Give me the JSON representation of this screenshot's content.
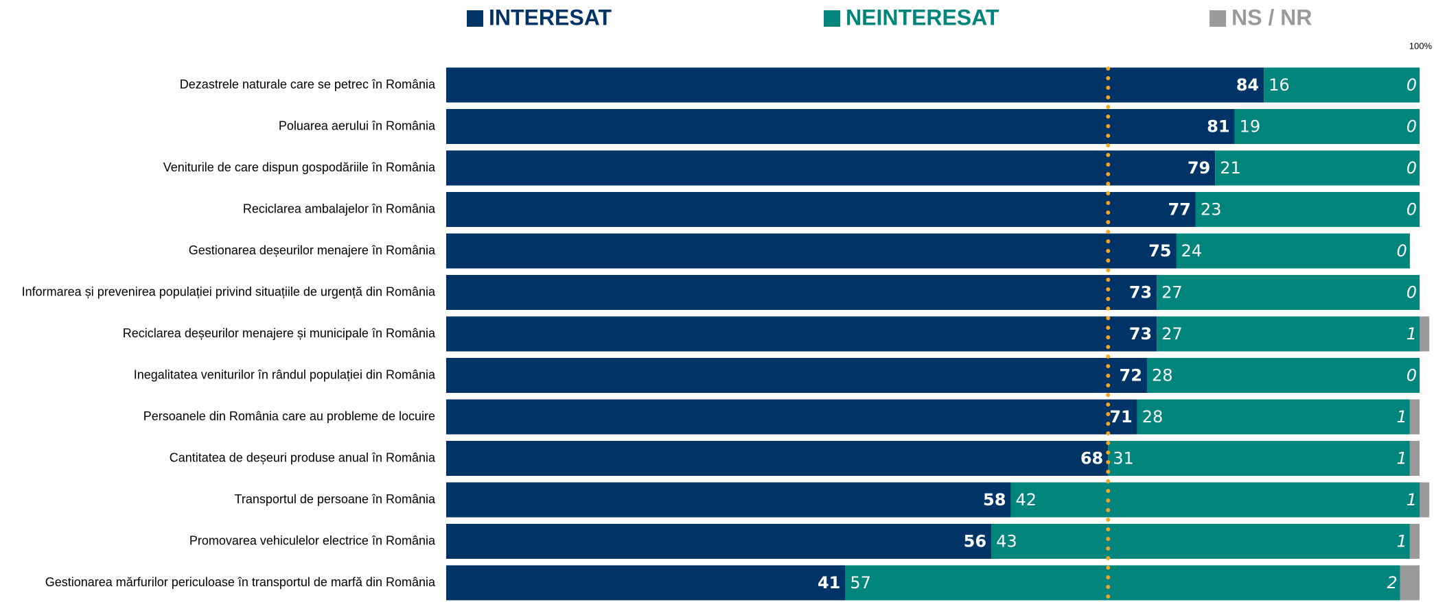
{
  "chart_data": {
    "type": "stacked-bar-horizontal",
    "categories": [
      "Dezastrele naturale care se petrec în România",
      "Poluarea aerului în România",
      "Veniturile de care dispun gospodăriile în România",
      "Reciclarea ambalajelor în România",
      "Gestionarea deșeurilor menajere în România",
      "Informarea și prevenirea populației privind situațiile de urgență din România",
      "Reciclarea deșeurilor menajere și municipale în România",
      "Inegalitatea veniturilor în rândul populației din România",
      "Persoanele din România care au probleme de locuire",
      "Cantitatea de deșeuri produse anual în România",
      "Transportul de persoane în România",
      "Promovarea vehiculelor electrice în România",
      "Gestionarea mărfurilor periculoase în transportul de marfă din România"
    ],
    "series": [
      {
        "name": "INTERESAT",
        "color": "#003366",
        "values": [
          84,
          81,
          79,
          77,
          75,
          73,
          73,
          72,
          71,
          68,
          58,
          56,
          41
        ]
      },
      {
        "name": "NEINTERESAT",
        "color": "#00857c",
        "values": [
          16,
          19,
          21,
          23,
          24,
          27,
          27,
          28,
          28,
          31,
          42,
          43,
          57
        ]
      },
      {
        "name": "NS / NR",
        "color": "#9a9a9a",
        "values": [
          0,
          0,
          0,
          0,
          0,
          0,
          1,
          0,
          1,
          1,
          1,
          1,
          2
        ]
      }
    ],
    "xlim": [
      0,
      100
    ],
    "xticks": [
      {
        "value": 100,
        "label": "100%"
      }
    ],
    "reference_value": 68,
    "reference_color": "#f5a623"
  }
}
